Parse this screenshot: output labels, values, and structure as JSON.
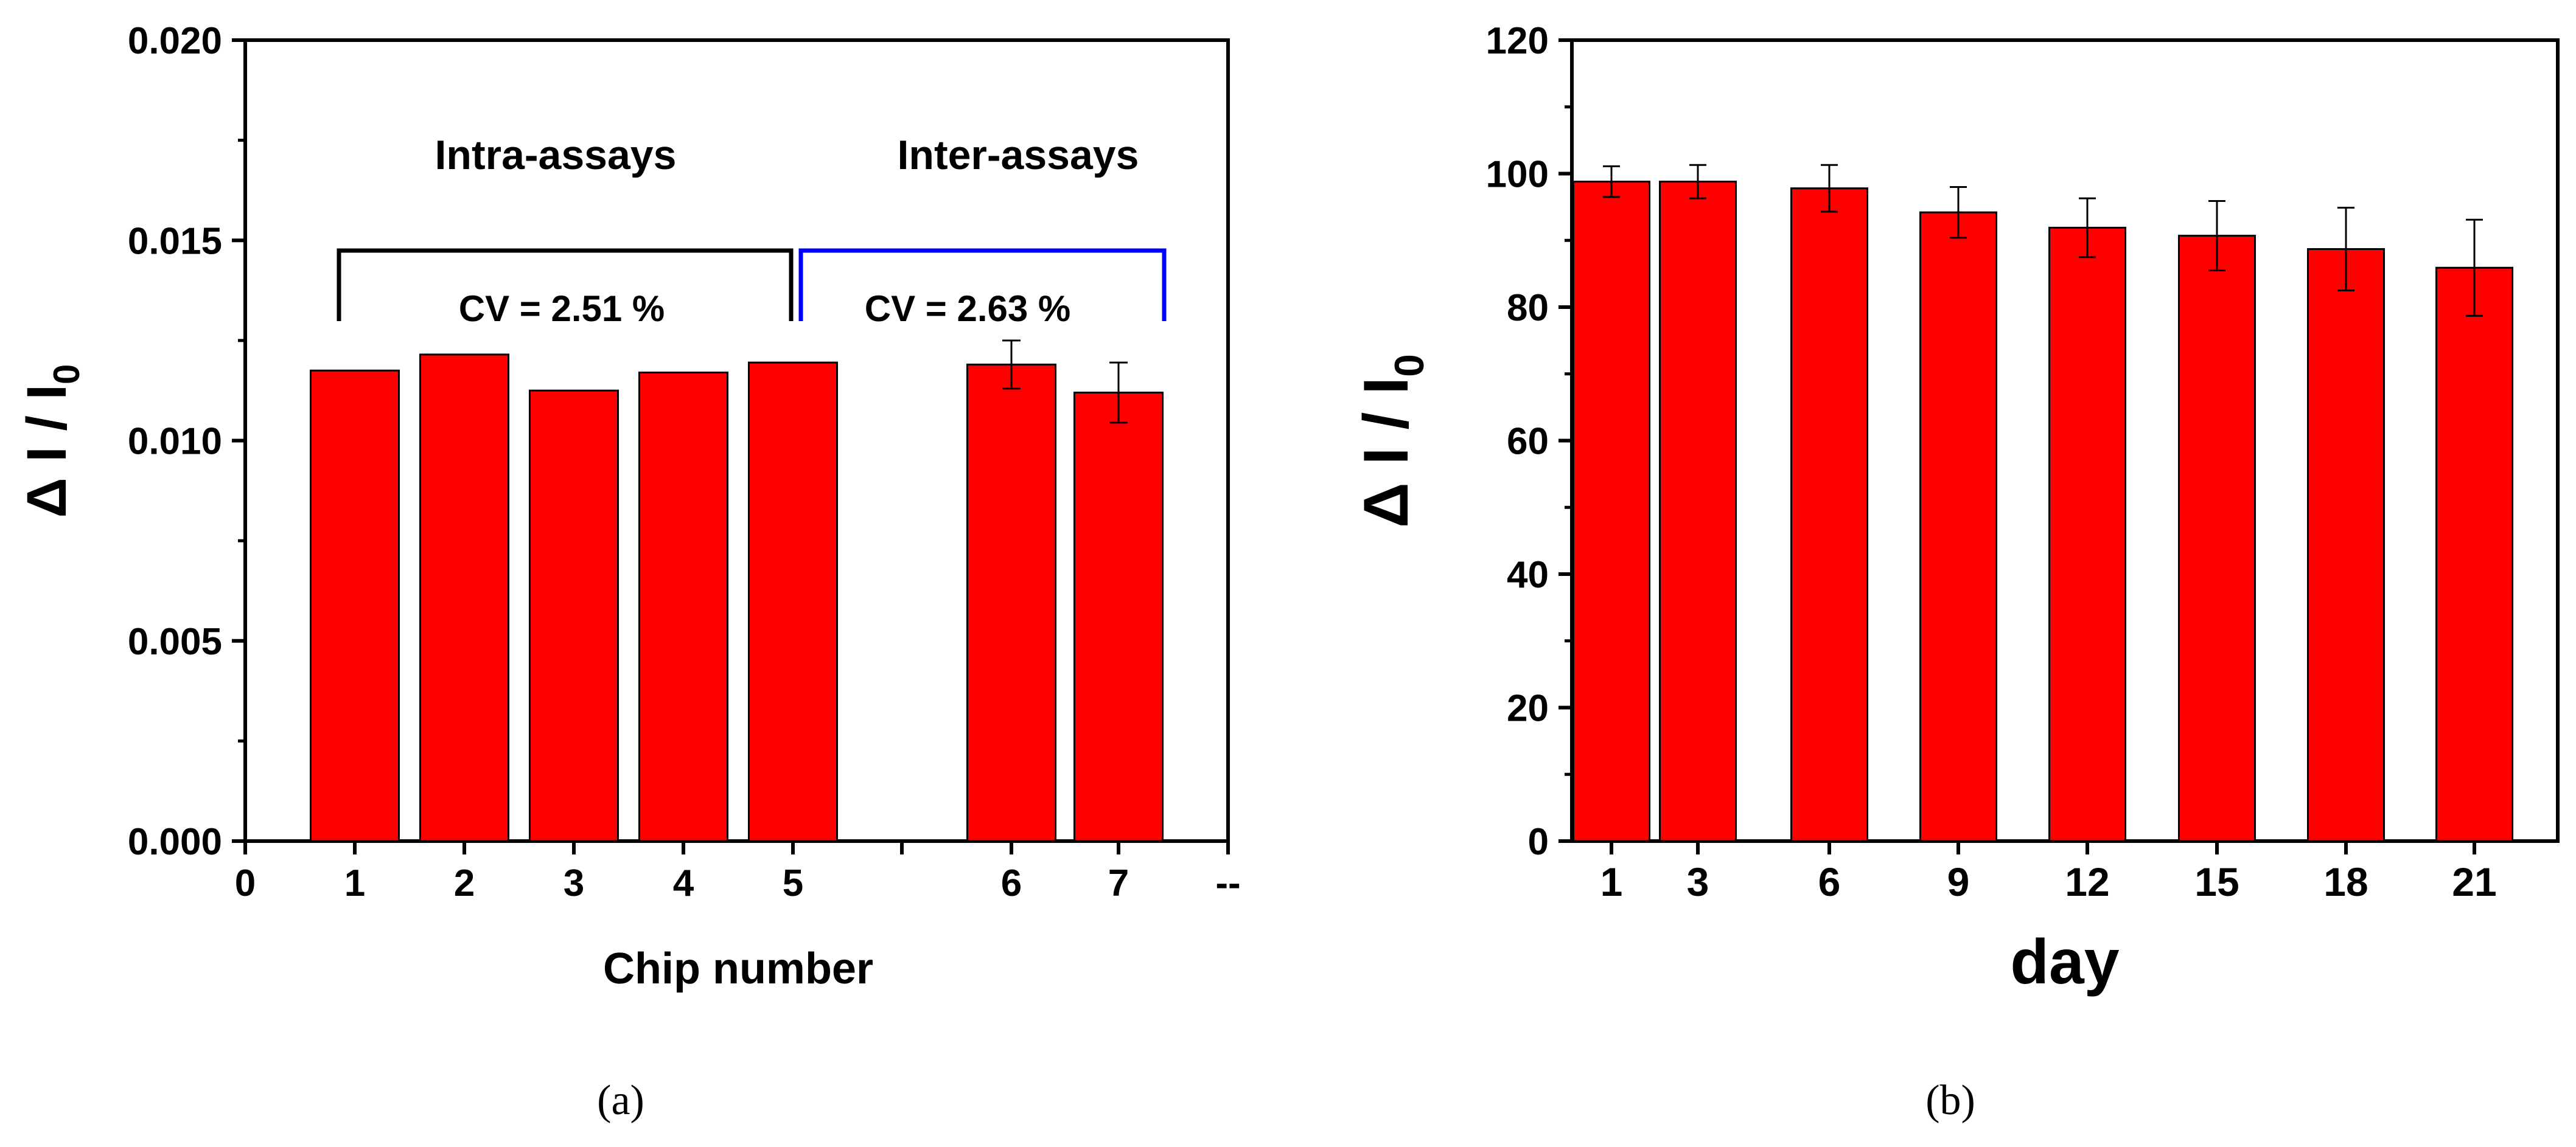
{
  "chart_data": [
    {
      "panel": "(a)",
      "type": "bar",
      "xlabel": "Chip number",
      "ylabel_main": "Δ I / I",
      "ylabel_sub": "0",
      "ylim": [
        0,
        0.02
      ],
      "yticks": [
        "0.000",
        "0.005",
        "0.010",
        "0.015",
        "0.020"
      ],
      "xtick_labels": [
        "0",
        "1",
        "2",
        "3",
        "4",
        "5",
        "",
        "6",
        "7",
        "--"
      ],
      "categories": [
        "1",
        "2",
        "3",
        "4",
        "5",
        "6",
        "7"
      ],
      "values": [
        0.01175,
        0.01215,
        0.01125,
        0.0117,
        0.01195,
        0.0119,
        0.0112
      ],
      "errors": [
        null,
        null,
        null,
        null,
        null,
        0.0006,
        0.00075
      ],
      "bar_color": "#ff0000",
      "annotations": {
        "intra_label": "Intra-assays",
        "inter_label": "Inter-assays",
        "intra_cv": "CV = 2.51 %",
        "inter_cv": "CV = 2.63 %",
        "intra_bracket_color": "#000000",
        "inter_bracket_color": "#0000ff"
      },
      "grid": false
    },
    {
      "panel": "(b)",
      "type": "bar",
      "xlabel": "day",
      "ylabel_main": "Δ I / I",
      "ylabel_sub": "0",
      "ylim": [
        0,
        120
      ],
      "yticks": [
        "0",
        "20",
        "40",
        "60",
        "80",
        "100",
        "120"
      ],
      "categories": [
        "1",
        "3",
        "6",
        "9",
        "12",
        "15",
        "18",
        "21"
      ],
      "values": [
        98.8,
        98.8,
        97.8,
        94.2,
        91.9,
        90.7,
        88.7,
        85.9
      ],
      "errors": [
        2.3,
        2.5,
        3.5,
        3.8,
        4.4,
        5.2,
        6.2,
        7.2
      ],
      "bar_color": "#ff0000",
      "grid": false
    }
  ]
}
